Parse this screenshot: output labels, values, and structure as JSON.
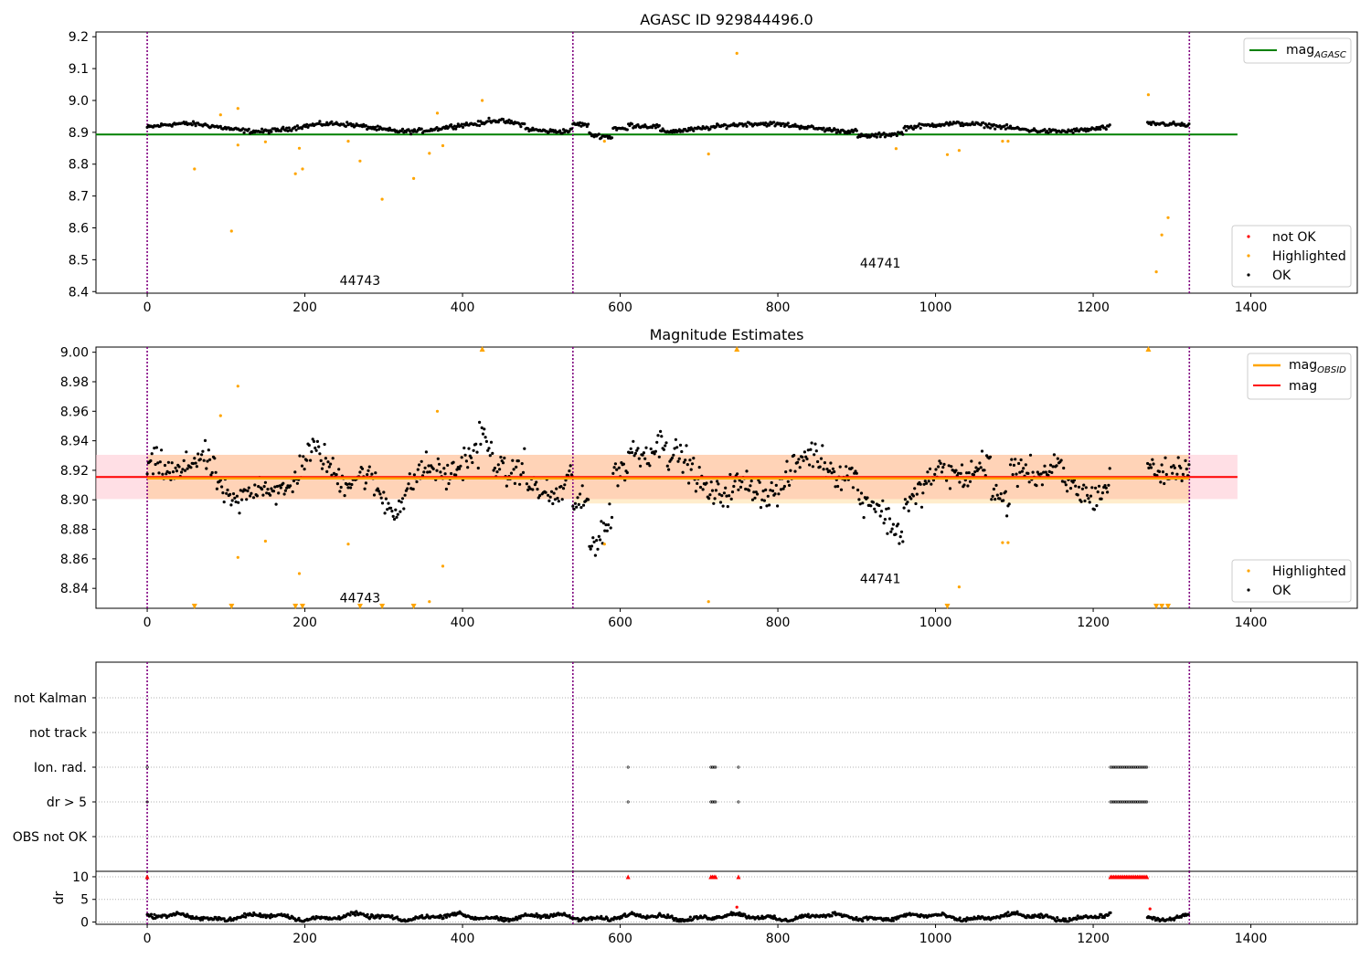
{
  "chart_data": [
    {
      "id": "agasc",
      "type": "scatter",
      "title": "AGASC ID 929844496.0",
      "xlim": [
        -65,
        1535
      ],
      "ylim": [
        8.395,
        9.215
      ],
      "x_ticks": [
        "0",
        "200",
        "400",
        "600",
        "800",
        "1000",
        "1200",
        "1400"
      ],
      "y_ticks": [
        "8.4",
        "8.5",
        "8.6",
        "8.7",
        "8.8",
        "8.9",
        "9.0",
        "9.1",
        "9.2"
      ],
      "obsid_boundaries": [
        0,
        540,
        1322
      ],
      "obsid_labels": [
        {
          "text": "44743",
          "x": 270,
          "y": 8.435
        },
        {
          "text": "44741",
          "x": 930,
          "y": 8.49
        }
      ],
      "reference_lines": [
        {
          "name": "mag_AGASC",
          "label": "mag",
          "sub": "AGASC",
          "y": 8.893,
          "x": [
            -65,
            1383
          ],
          "color": "#008000"
        }
      ],
      "legend_lines": [
        {
          "label": "mag",
          "sub": "AGASC",
          "color": "#008000"
        }
      ],
      "legend_points": [
        {
          "label": "not OK",
          "color": "#ff0000"
        },
        {
          "label": "Highlighted",
          "color": "#ffa500"
        },
        {
          "label": "OK",
          "color": "#000000"
        }
      ],
      "series": [
        {
          "name": "OK",
          "color": "#000000",
          "model": "agasc_ok"
        },
        {
          "name": "Highlighted",
          "color": "#ffa500",
          "points": [
            [
              60,
              8.785
            ],
            [
              93,
              8.955
            ],
            [
              107,
              8.59
            ],
            [
              115,
              8.86
            ],
            [
              115,
              8.975
            ],
            [
              150,
              8.87
            ],
            [
              188,
              8.77
            ],
            [
              193,
              8.85
            ],
            [
              197,
              8.785
            ],
            [
              255,
              8.872
            ],
            [
              270,
              8.81
            ],
            [
              298,
              8.69
            ],
            [
              338,
              8.755
            ],
            [
              358,
              8.834
            ],
            [
              368,
              8.96
            ],
            [
              375,
              8.858
            ],
            [
              425,
              9.0
            ],
            [
              580,
              8.872
            ],
            [
              712,
              8.832
            ],
            [
              748,
              9.148
            ],
            [
              950,
              8.849
            ],
            [
              1015,
              8.83
            ],
            [
              1030,
              8.843
            ],
            [
              1085,
              8.872
            ],
            [
              1092,
              8.872
            ],
            [
              1270,
              9.018
            ],
            [
              1280,
              8.462
            ],
            [
              1287,
              8.578
            ],
            [
              1295,
              8.632
            ]
          ]
        }
      ]
    },
    {
      "id": "estimates",
      "type": "scatter",
      "title": "Magnitude Estimates",
      "xlim": [
        -65,
        1535
      ],
      "ylim": [
        8.8265,
        9.0035
      ],
      "x_ticks": [
        "0",
        "200",
        "400",
        "600",
        "800",
        "1000",
        "1200",
        "1400"
      ],
      "y_ticks": [
        "8.84",
        "8.86",
        "8.88",
        "8.90",
        "8.92",
        "8.94",
        "8.96",
        "8.98",
        "9.00"
      ],
      "obsid_boundaries": [
        0,
        540,
        1322
      ],
      "obsid_labels": [
        {
          "text": "44743",
          "x": 270,
          "y": 8.8335
        },
        {
          "text": "44741",
          "x": 930,
          "y": 8.8465
        }
      ],
      "mag_line": {
        "name": "mag",
        "y": 8.9155,
        "band": [
          8.9005,
          8.9305
        ],
        "x": [
          -65,
          1383
        ],
        "color": "#ff0000",
        "band_color": "#ffc0cb"
      },
      "mag_obsid": [
        {
          "name": "mag_OBSID",
          "x": [
            0,
            540
          ],
          "y": 8.9145,
          "band": [
            8.9005,
            8.9305
          ],
          "color": "#ffa500"
        },
        {
          "name": "mag_OBSID",
          "x": [
            540,
            1322
          ],
          "y": 8.9145,
          "band": [
            8.8975,
            8.9305
          ],
          "color": "#ffa500"
        }
      ],
      "legend_lines": [
        {
          "label": "mag",
          "sub": "OBSID",
          "color": "#ffa500"
        },
        {
          "label": "mag",
          "sub": "",
          "color": "#ff0000"
        }
      ],
      "legend_points": [
        {
          "label": "Highlighted",
          "color": "#ffa500"
        },
        {
          "label": "OK",
          "color": "#000000"
        }
      ],
      "series": [
        {
          "name": "OK",
          "color": "#000000",
          "model": "est_ok"
        },
        {
          "name": "Highlighted",
          "color": "#ffa500",
          "points": [
            [
              93,
              8.957
            ],
            [
              115,
              8.977
            ],
            [
              115,
              8.861
            ],
            [
              150,
              8.872
            ],
            [
              193,
              8.85
            ],
            [
              255,
              8.87
            ],
            [
              358,
              8.831
            ],
            [
              368,
              8.96
            ],
            [
              375,
              8.855
            ],
            [
              580,
              8.87
            ],
            [
              712,
              8.831
            ],
            [
              1030,
              8.841
            ],
            [
              1085,
              8.871
            ],
            [
              1092,
              8.871
            ]
          ]
        },
        {
          "name": "Highlighted (above axis)",
          "color": "#ffa500",
          "marker": "triangle-up",
          "x": [
            425,
            748,
            1270
          ]
        },
        {
          "name": "Highlighted (below axis)",
          "color": "#ffa500",
          "marker": "triangle-down",
          "x": [
            60,
            107,
            188,
            197,
            270,
            298,
            338,
            1015,
            1280,
            1287,
            1295
          ]
        }
      ]
    },
    {
      "id": "flags",
      "type": "scatter",
      "xlim": [
        -65,
        1535
      ],
      "categories": [
        "not Kalman",
        "not track",
        "Ion. rad.",
        "dr > 5",
        "OBS not OK"
      ],
      "obsid_boundaries": [
        0,
        540,
        1322
      ],
      "flag_points": [
        {
          "flag": "Ion. rad.",
          "x": [
            0,
            610,
            715,
            717,
            719,
            721,
            750
          ],
          "range": [
            1222,
            1268,
            2
          ]
        },
        {
          "flag": "dr > 5",
          "x": [
            0,
            610,
            715,
            717,
            719,
            721,
            750
          ],
          "range": [
            1222,
            1268,
            2
          ]
        }
      ]
    },
    {
      "id": "dr",
      "type": "scatter",
      "xlim": [
        -65,
        1535
      ],
      "ylim": [
        -0.5,
        11.2
      ],
      "ylabel": "dr",
      "y_ticks": [
        "0",
        "5",
        "10"
      ],
      "x_ticks": [
        "0",
        "200",
        "400",
        "600",
        "800",
        "1000",
        "1200",
        "1400"
      ],
      "obsid_boundaries": [
        0,
        540,
        1322
      ],
      "clip_value": 10,
      "clipped_points": {
        "color": "#ff0000",
        "x": [
          0,
          610,
          715,
          717,
          719,
          721,
          750
        ],
        "range": [
          1222,
          1268,
          2
        ]
      },
      "outliers": [
        [
          748,
          3.3
        ],
        [
          1272,
          2.9
        ]
      ],
      "series": [
        {
          "name": "dr",
          "color": "#000000",
          "model": "dr"
        }
      ]
    }
  ]
}
